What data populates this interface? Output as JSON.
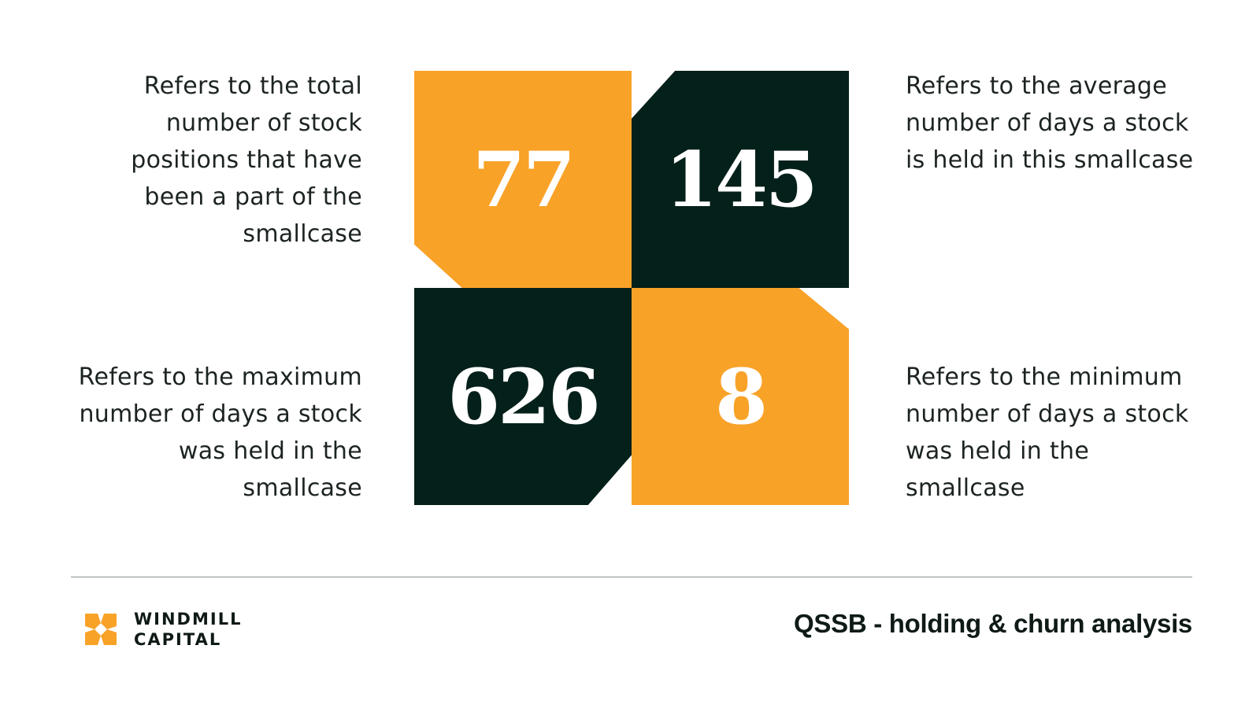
{
  "metrics": [
    {
      "id": "total_positions",
      "value": "77",
      "description": "Refers to the total number of stock positions that have been a part of the smallcase"
    },
    {
      "id": "average_days",
      "value": "145",
      "description": "Refers to the average number of days a stock is held in this smallcase"
    },
    {
      "id": "maximum_days",
      "value": "626",
      "description": "Refers to the maximum number of days a stock was held in the smallcase"
    },
    {
      "id": "minimum_days",
      "value": "8",
      "description": "Refers to the minimum number of days a stock was held in the smallcase"
    }
  ],
  "brand": {
    "line1": "WINDMILL",
    "line2": "CAPITAL",
    "logo_icon": "windmill-x-icon"
  },
  "footer": {
    "title": "QSSB - holding & churn analysis"
  },
  "colors": {
    "orange": "#f9a228",
    "dark_green": "#04201a",
    "text": "#1c2421"
  }
}
